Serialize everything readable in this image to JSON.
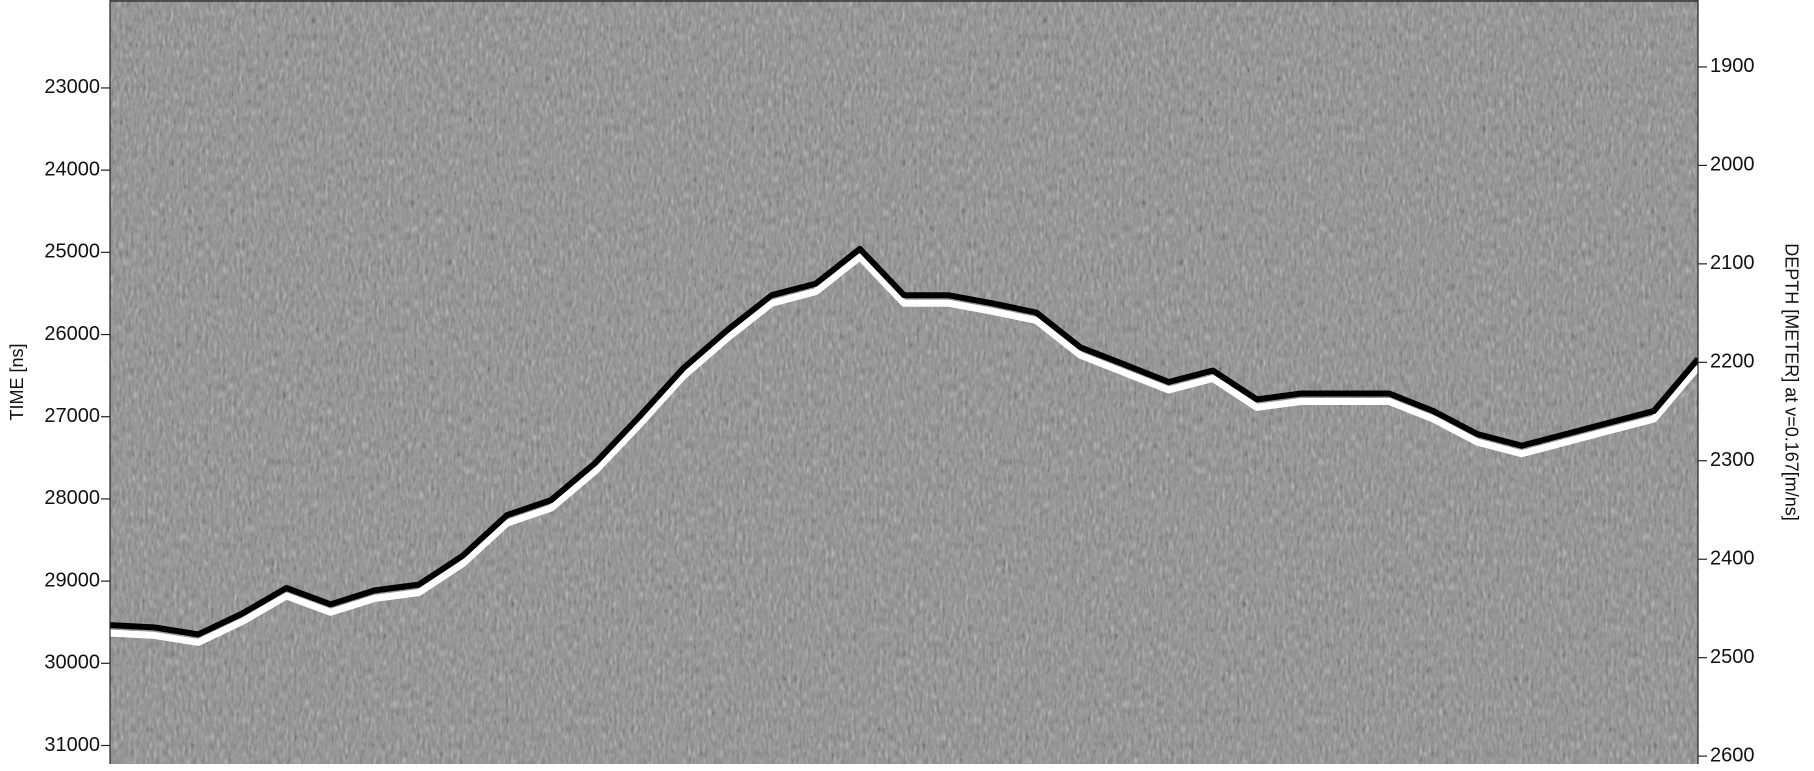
{
  "chart_data": {
    "type": "radargram",
    "ylabel": "TIME [ns]",
    "y2label": "DEPTH [METER] at v=0.167[m/ns]",
    "ylim": [
      21930,
      31225
    ],
    "yticks": [
      23000,
      24000,
      25000,
      26000,
      27000,
      28000,
      29000,
      30000,
      31000
    ],
    "y2lim": [
      1832,
      2608
    ],
    "y2ticks": [
      1900,
      2000,
      2100,
      2200,
      2300,
      2400,
      2500,
      2600
    ],
    "categories": [
      null,
      null,
      null,
      null,
      null,
      null,
      null,
      null,
      null,
      null,
      null,
      null,
      null,
      null,
      null,
      null,
      null,
      null,
      null,
      null,
      null,
      null,
      null,
      null,
      null,
      null,
      null,
      null,
      null,
      null,
      null,
      null,
      null,
      null,
      null,
      null,
      null
    ],
    "series": [
      {
        "color": "#000000",
        "values": [
          29535,
          29563,
          29648,
          29394,
          29084,
          29282,
          29113,
          29042,
          28690,
          28197,
          28014,
          27563,
          27000,
          26408,
          25944,
          25521,
          25380,
          24958,
          25521,
          25521,
          25620,
          25732,
          26155,
          26366,
          26577,
          26437,
          26789,
          26718,
          26718,
          26718,
          26930,
          27211,
          27352,
          27211,
          27070,
          26930,
          26296
        ]
      }
    ]
  }
}
